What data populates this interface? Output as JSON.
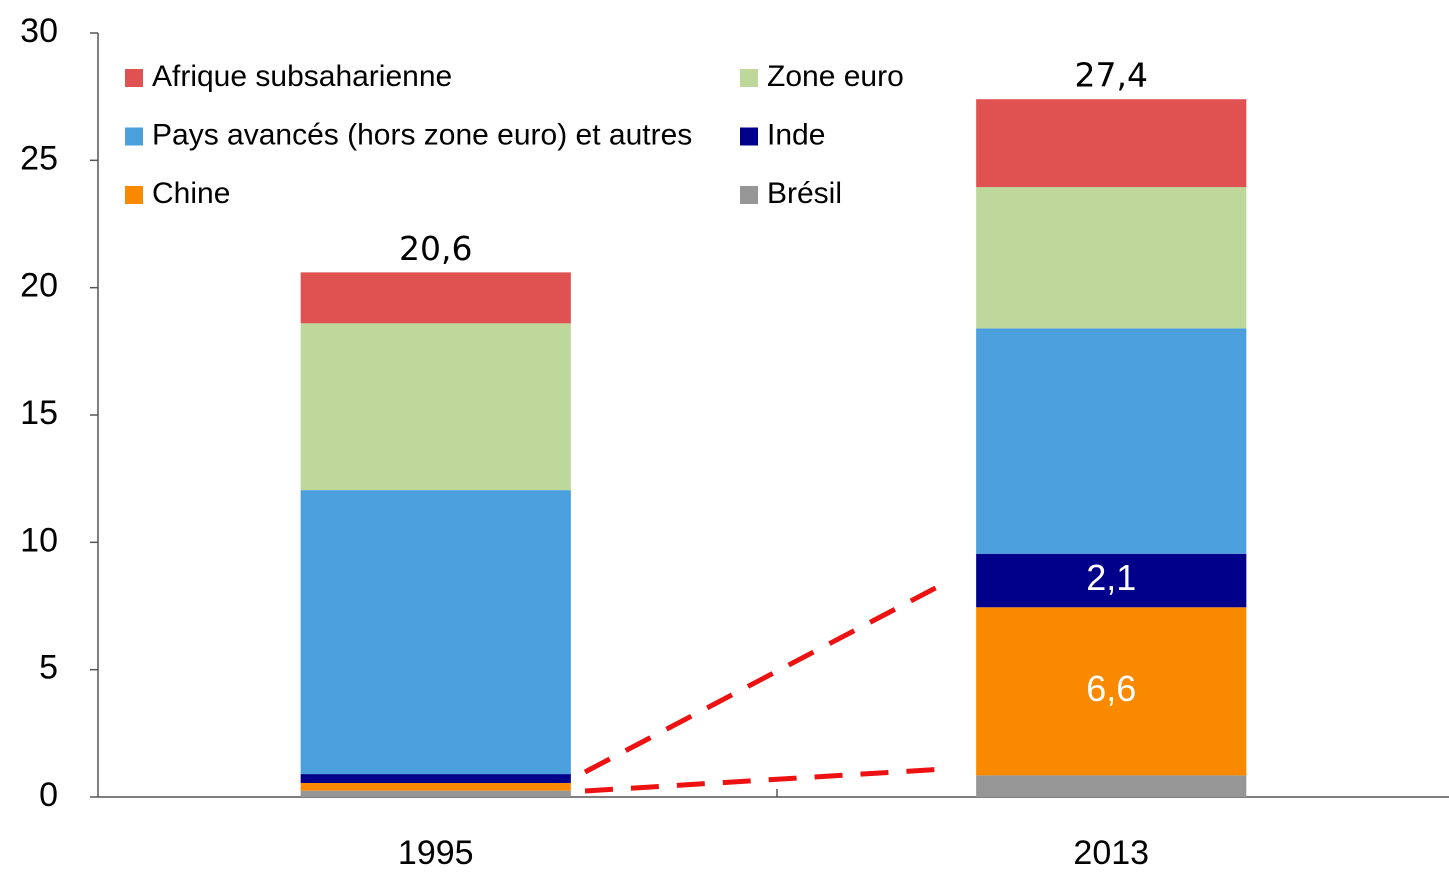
{
  "chart_data": {
    "type": "stacked_bar",
    "categories": [
      "1995",
      "2013"
    ],
    "series": [
      {
        "name": "Brésil",
        "color": "#969696",
        "values": [
          0.25,
          0.85
        ]
      },
      {
        "name": "Chine",
        "color": "#f98a00",
        "values": [
          0.3,
          6.6
        ],
        "value_labels": [
          null,
          "6,6"
        ]
      },
      {
        "name": "Inde",
        "color": "#00008b",
        "values": [
          0.35,
          2.1
        ],
        "value_labels": [
          null,
          "2,1"
        ]
      },
      {
        "name": "Pays avancés (hors zone euro) et autres",
        "color": "#4a9fdc",
        "values": [
          11.15,
          8.85
        ]
      },
      {
        "name": "Zone euro",
        "color": "#bed89c",
        "values": [
          6.55,
          5.55
        ]
      },
      {
        "name": "Afrique subsaharienne",
        "color": "#e05252",
        "values": [
          2.0,
          3.45
        ]
      }
    ],
    "totals": [
      20.6,
      27.4
    ],
    "total_labels": [
      "20,6",
      "27,4"
    ],
    "ylim": [
      0,
      30
    ],
    "yticks": [
      0,
      5,
      10,
      15,
      20,
      25,
      30
    ]
  }
}
